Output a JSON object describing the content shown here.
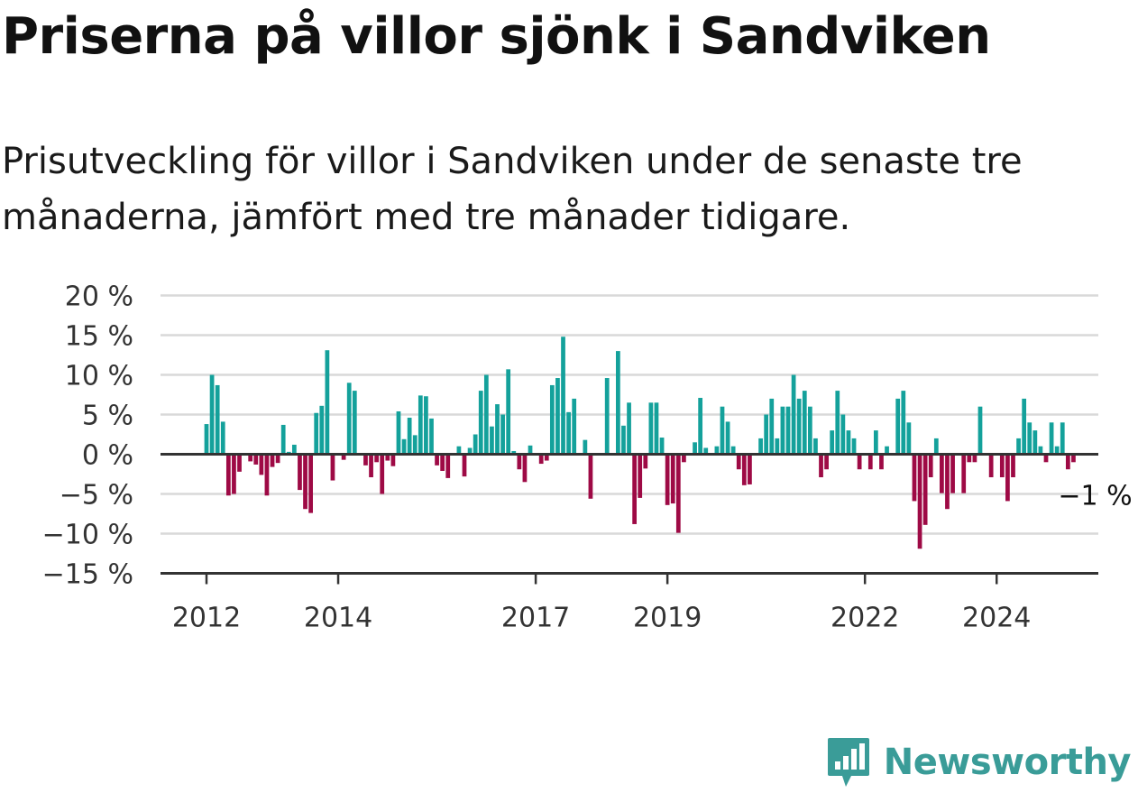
{
  "title": "Priserna på villor sjönk i Sandviken",
  "subtitle": "Prisutveckling för villor i Sandviken under de senaste tre månaderna, jämfört med tre månader tidigare.",
  "brand": {
    "name": "Newsworthy",
    "icon": "bar-chart-speech-bubble-icon",
    "color": "#3a9c98"
  },
  "chart_data": {
    "type": "bar",
    "x_axis": {
      "type": "time",
      "start": "2012-01",
      "end": "2025-06",
      "tick_labels": [
        "2012",
        "2014",
        "2017",
        "2019",
        "2022",
        "2024"
      ]
    },
    "y_axis": {
      "ticks": [
        20,
        15,
        10,
        5,
        0,
        -5,
        -10,
        -15
      ],
      "tick_labels": [
        "20 %",
        "15 %",
        "10 %",
        "5 %",
        "0 %",
        "−5 %",
        "−10 %",
        "−15 %"
      ],
      "ylim": [
        -15,
        20
      ],
      "unit": "%"
    },
    "colors": {
      "positive": "#14a19b",
      "negative": "#9e0a45"
    },
    "grid": true,
    "last_value_label": "−1 %",
    "series": [
      {
        "values": [
          3.8,
          10.0,
          8.7,
          4.1,
          -5.2,
          -5.0,
          -2.2,
          null,
          -0.9,
          -1.3,
          -2.6,
          -5.2,
          -1.6,
          -1.1,
          3.7,
          0.3,
          1.2,
          -4.5,
          -6.9,
          -7.4,
          5.2,
          6.1,
          13.1,
          -3.3,
          null,
          -0.7,
          9.0,
          8.0,
          null,
          -1.4,
          -2.9,
          -1.0,
          -5.0,
          -0.8,
          -1.5,
          5.4,
          1.9,
          4.6,
          2.4,
          7.4,
          7.3,
          4.5,
          -1.4,
          -2.1,
          -3.0,
          null,
          1.0,
          -2.8,
          0.8,
          2.5,
          8.0,
          10.0,
          3.5,
          6.3,
          5.0,
          10.7,
          0.4,
          -1.9,
          -3.5,
          1.1,
          null,
          -1.2,
          -0.8,
          8.7,
          9.6,
          14.8,
          5.3,
          7.0,
          null,
          1.8,
          -5.6,
          null,
          null,
          9.6,
          null,
          13.0,
          3.6,
          6.5,
          -8.8,
          -5.5,
          -1.8,
          6.5,
          6.5,
          2.1,
          -6.4,
          -6.2,
          -9.9,
          -1.0,
          null,
          1.5,
          7.1,
          0.8,
          null,
          1.0,
          6.0,
          4.1,
          1.0,
          -1.9,
          -3.9,
          -3.8,
          null,
          2.0,
          5.0,
          7.0,
          2.0,
          6.0,
          6.0,
          10.0,
          7.0,
          8.0,
          6.0,
          2.0,
          -2.9,
          -1.9,
          3.0,
          8.0,
          5.0,
          3.0,
          2.0,
          -1.9,
          null,
          -1.9,
          3.0,
          -1.9,
          1.0,
          null,
          7.0,
          8.0,
          4.0,
          -5.9,
          -11.9,
          -8.9,
          -2.9,
          2.0,
          -4.9,
          -6.9,
          -4.9,
          null,
          -4.9,
          -1.0,
          -1.0,
          6.0,
          null,
          -2.9,
          null,
          -2.9,
          -5.9,
          -2.9,
          2.0,
          7.0,
          4.0,
          3.0,
          1.0,
          -1.0,
          4.0,
          1.0,
          4.0,
          -1.9,
          -1.0
        ]
      }
    ]
  }
}
